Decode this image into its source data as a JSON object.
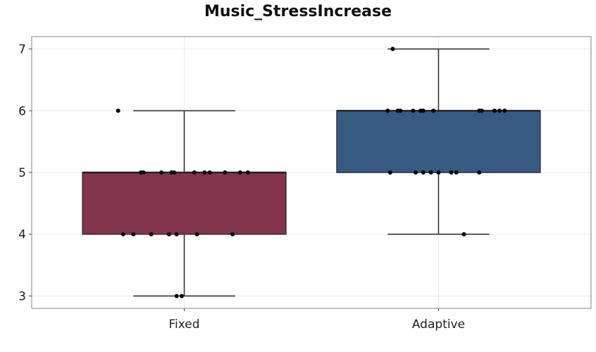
{
  "chart_data": {
    "type": "box",
    "title": "Music_StressIncrease",
    "xlabel": "",
    "ylabel": "",
    "categories": [
      "Fixed",
      "Adaptive"
    ],
    "ylim": [
      2.8,
      7.2
    ],
    "yticks": [
      3,
      4,
      5,
      6,
      7
    ],
    "grid": true,
    "legend": "none",
    "boxes": [
      {
        "category": "Fixed",
        "color": "#84334d",
        "whisker_low": 3,
        "q1": 4,
        "median": 5,
        "q3": 5,
        "whisker_high": 6,
        "points": [
          {
            "x": 0.74,
            "y": 6
          },
          {
            "x": 0.97,
            "y": 3
          },
          {
            "x": 0.99,
            "y": 3
          },
          {
            "x": 0.76,
            "y": 4
          },
          {
            "x": 0.8,
            "y": 4
          },
          {
            "x": 0.87,
            "y": 4
          },
          {
            "x": 0.94,
            "y": 4
          },
          {
            "x": 0.97,
            "y": 4
          },
          {
            "x": 1.05,
            "y": 4
          },
          {
            "x": 1.19,
            "y": 4
          },
          {
            "x": 0.83,
            "y": 5
          },
          {
            "x": 0.84,
            "y": 5
          },
          {
            "x": 0.91,
            "y": 5
          },
          {
            "x": 0.95,
            "y": 5
          },
          {
            "x": 0.96,
            "y": 5
          },
          {
            "x": 1.04,
            "y": 5
          },
          {
            "x": 1.08,
            "y": 5
          },
          {
            "x": 1.1,
            "y": 5
          },
          {
            "x": 1.16,
            "y": 5
          },
          {
            "x": 1.22,
            "y": 5
          },
          {
            "x": 1.25,
            "y": 5
          }
        ]
      },
      {
        "category": "Adaptive",
        "color": "#375a82",
        "whisker_low": 4,
        "q1": 5,
        "median": 6,
        "q3": 6,
        "whisker_high": 7,
        "points": [
          {
            "x": 1.82,
            "y": 7
          },
          {
            "x": 2.1,
            "y": 4
          },
          {
            "x": 1.81,
            "y": 5
          },
          {
            "x": 1.91,
            "y": 5
          },
          {
            "x": 1.94,
            "y": 5
          },
          {
            "x": 1.97,
            "y": 5
          },
          {
            "x": 2.0,
            "y": 5
          },
          {
            "x": 2.05,
            "y": 5
          },
          {
            "x": 2.07,
            "y": 5
          },
          {
            "x": 2.16,
            "y": 5
          },
          {
            "x": 1.8,
            "y": 6
          },
          {
            "x": 1.84,
            "y": 6
          },
          {
            "x": 1.85,
            "y": 6
          },
          {
            "x": 1.9,
            "y": 6
          },
          {
            "x": 1.93,
            "y": 6
          },
          {
            "x": 1.94,
            "y": 6
          },
          {
            "x": 1.98,
            "y": 6
          },
          {
            "x": 2.16,
            "y": 6
          },
          {
            "x": 2.17,
            "y": 6
          },
          {
            "x": 2.22,
            "y": 6
          },
          {
            "x": 2.24,
            "y": 6
          },
          {
            "x": 2.26,
            "y": 6
          }
        ]
      }
    ]
  }
}
